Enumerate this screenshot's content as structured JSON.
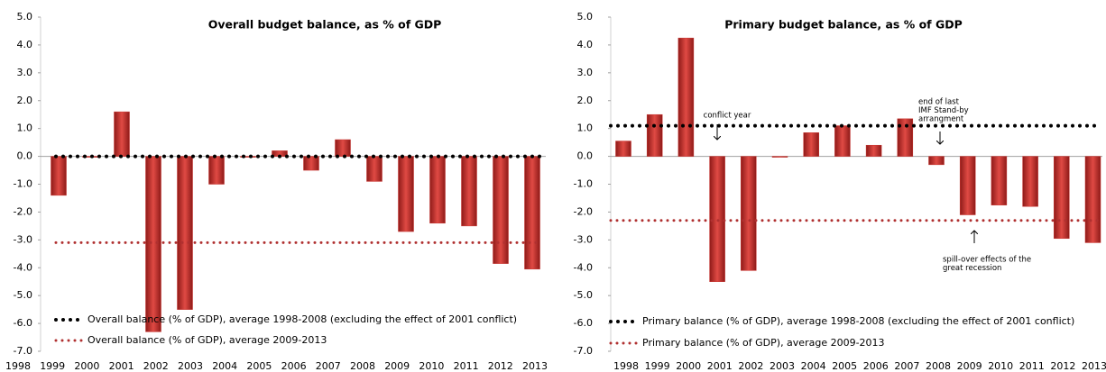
{
  "chart_data": [
    {
      "type": "bar",
      "title": "Overall budget balance, as % of GDP",
      "categories": [
        "1998",
        "1999",
        "2000",
        "2001",
        "2002",
        "2003",
        "2004",
        "2005",
        "2006",
        "2007",
        "2008",
        "2009",
        "2010",
        "2011",
        "2012",
        "2013"
      ],
      "values": [
        -1.4,
        0,
        1.6,
        -6.3,
        -5.5,
        -1.0,
        0,
        0.2,
        -0.5,
        0.6,
        -0.9,
        -2.7,
        -2.4,
        -2.5,
        -3.85,
        -4.05
      ],
      "color": "#c8302c",
      "ylim": [
        -7,
        5
      ],
      "yticks": [
        {
          "value": -7,
          "label": "-7.0"
        },
        {
          "value": -6,
          "label": "-6.0"
        },
        {
          "value": -5,
          "label": "-5.0"
        },
        {
          "value": -4,
          "label": "-4.0"
        },
        {
          "value": -3,
          "label": "-3.0"
        },
        {
          "value": -2,
          "label": "-2.0"
        },
        {
          "value": -1,
          "label": "-1.0"
        },
        {
          "value": 0,
          "label": "0.0"
        },
        {
          "value": 1,
          "label": "1.0"
        },
        {
          "value": 2,
          "label": "2.0"
        },
        {
          "value": 3,
          "label": "3.0"
        },
        {
          "value": 4,
          "label": "4.0"
        },
        {
          "value": 5,
          "label": "5.0"
        }
      ],
      "lines": [
        {
          "name": "Overall balance (% of GDP), average 1998-2008 (excluding the effect of 2001 conflict)",
          "color": "#000000",
          "value": 0
        },
        {
          "name": "Overall balance (% of GDP), average 2009-2013",
          "color": "#b03030",
          "value": -3.1
        }
      ],
      "annotations": []
    },
    {
      "type": "bar",
      "title": "Primary budget balance, as % of GDP",
      "categories": [
        "1998",
        "1999",
        "2000",
        "2001",
        "2002",
        "2003",
        "2004",
        "2005",
        "2006",
        "2007",
        "2008",
        "2009",
        "2010",
        "2011",
        "2012",
        "2013"
      ],
      "values": [
        0.55,
        1.5,
        4.25,
        -4.5,
        -4.1,
        0,
        0.85,
        1.1,
        0.4,
        1.35,
        -0.3,
        -2.1,
        -1.75,
        -1.8,
        -2.95,
        -3.1
      ],
      "color": "#c8302c",
      "ylim": [
        -7,
        5
      ],
      "yticks": [
        {
          "value": -7,
          "label": "-7.0"
        },
        {
          "value": -6,
          "label": "-6.0"
        },
        {
          "value": -5,
          "label": "-5.0"
        },
        {
          "value": -4,
          "label": "-4.0"
        },
        {
          "value": -3,
          "label": "-3.0"
        },
        {
          "value": -2,
          "label": "-2.0"
        },
        {
          "value": -1,
          "label": "-1.0"
        },
        {
          "value": 0,
          "label": "0.0"
        },
        {
          "value": 1,
          "label": "1.0"
        },
        {
          "value": 2,
          "label": "2.0"
        },
        {
          "value": 3,
          "label": "3.0"
        },
        {
          "value": 4,
          "label": "4.0"
        },
        {
          "value": 5,
          "label": "5.0"
        }
      ],
      "lines": [
        {
          "name": "Primary balance (% of GDP), average 1998-2008 (excluding the effect of 2001 conflict)",
          "color": "#000000",
          "value": 1.1
        },
        {
          "name": "Primary balance (% of GDP), average 2009-2013",
          "color": "#b03030",
          "value": -2.3
        }
      ],
      "annotations": [
        {
          "text": [
            "conflict year"
          ]
        },
        {
          "text": [
            "end of last",
            "IMF Stand-by",
            "arrangment"
          ]
        },
        {
          "text": [
            "spill-over effects of the",
            "great recession"
          ]
        }
      ]
    }
  ]
}
